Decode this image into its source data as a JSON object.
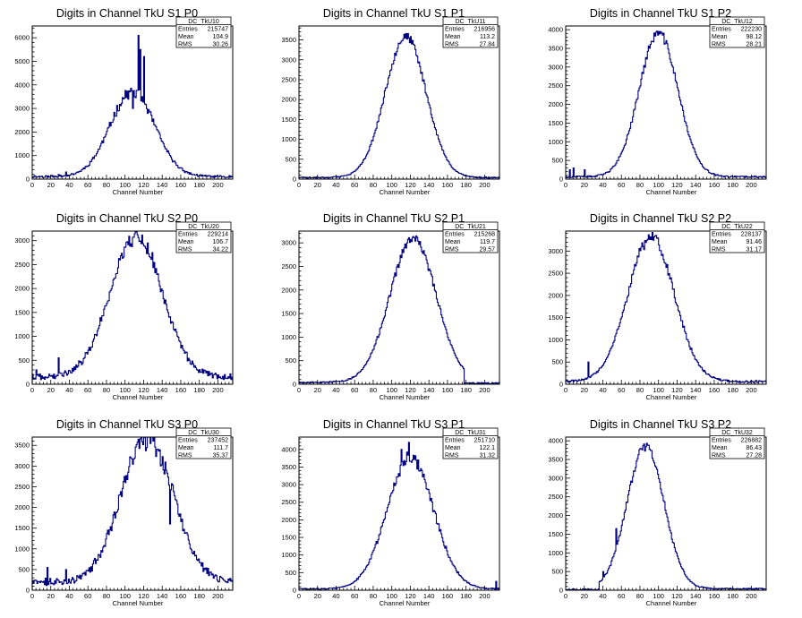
{
  "layout": {
    "rows": 3,
    "cols": 3
  },
  "chart_data": [
    {
      "type": "bar",
      "title": "Digits in Channel TkU S1 P0",
      "xlabel": "Channel Number",
      "ylabel": "",
      "xlim": [
        0,
        216
      ],
      "ylim": [
        0,
        6500
      ],
      "xticks": [
        0,
        20,
        40,
        60,
        80,
        100,
        120,
        140,
        160,
        180,
        200
      ],
      "yticks": [
        0,
        1000,
        2000,
        3000,
        4000,
        5000,
        6000
      ],
      "stats": {
        "name": "DC_TkU10",
        "rows": [
          {
            "label": "Entries",
            "value": "215747"
          },
          {
            "label": "Mean",
            "value": "104.9"
          },
          {
            "label": "RMS",
            "value": "30.26"
          }
        ]
      },
      "shape": {
        "mean": 108,
        "sigma": 24,
        "peak": 3600,
        "floor": 110,
        "noise": 0.06,
        "seed": 11,
        "spikes": [
          {
            "x": 108,
            "y": 3000
          },
          {
            "x": 110,
            "y": 3500
          },
          {
            "x": 114,
            "y": 6100
          },
          {
            "x": 116,
            "y": 5500
          },
          {
            "x": 118,
            "y": 3500
          },
          {
            "x": 120,
            "y": 5200
          },
          {
            "x": 36,
            "y": 300
          },
          {
            "x": 28,
            "y": 200
          }
        ]
      }
    },
    {
      "type": "bar",
      "title": "Digits in Channel TkU S1 P1",
      "xlabel": "Channel Number",
      "ylabel": "",
      "xlim": [
        0,
        216
      ],
      "ylim": [
        0,
        3850
      ],
      "xticks": [
        0,
        20,
        40,
        60,
        80,
        100,
        120,
        140,
        160,
        180,
        200
      ],
      "yticks": [
        0,
        500,
        1000,
        1500,
        2000,
        2500,
        3000,
        3500
      ],
      "stats": {
        "name": "DC_TkU11",
        "rows": [
          {
            "label": "Entries",
            "value": "216956"
          },
          {
            "label": "Mean",
            "value": "113.2"
          },
          {
            "label": "RMS",
            "value": "27.84"
          }
        ]
      },
      "shape": {
        "mean": 115,
        "sigma": 22,
        "peak": 3550,
        "floor": 40,
        "noise": 0.03,
        "seed": 23,
        "spikes": []
      }
    },
    {
      "type": "bar",
      "title": "Digits in Channel TkU S1 P2",
      "xlabel": "Channel Number",
      "ylabel": "",
      "xlim": [
        0,
        216
      ],
      "ylim": [
        0,
        4100
      ],
      "xticks": [
        0,
        20,
        40,
        60,
        80,
        100,
        120,
        140,
        160,
        180,
        200
      ],
      "yticks": [
        0,
        500,
        1000,
        1500,
        2000,
        2500,
        3000,
        3500,
        4000
      ],
      "stats": {
        "name": "DC_TkU12",
        "rows": [
          {
            "label": "Entries",
            "value": "222230"
          },
          {
            "label": "Mean",
            "value": "98.12"
          },
          {
            "label": "RMS",
            "value": "28.21"
          }
        ]
      },
      "shape": {
        "mean": 100,
        "sigma": 21,
        "peak": 3850,
        "floor": 60,
        "noise": 0.03,
        "seed": 37,
        "spikes": [
          {
            "x": 4,
            "y": 250
          },
          {
            "x": 8,
            "y": 300
          },
          {
            "x": 20,
            "y": 250
          }
        ]
      }
    },
    {
      "type": "bar",
      "title": "Digits in Channel TkU S2 P0",
      "xlabel": "Channel Number",
      "ylabel": "",
      "xlim": [
        0,
        216
      ],
      "ylim": [
        0,
        3200
      ],
      "xticks": [
        0,
        20,
        40,
        60,
        80,
        100,
        120,
        140,
        160,
        180,
        200
      ],
      "yticks": [
        0,
        500,
        1000,
        1500,
        2000,
        2500,
        3000
      ],
      "stats": {
        "name": "DC_TkU20",
        "rows": [
          {
            "label": "Entries",
            "value": "229214"
          },
          {
            "label": "Mean",
            "value": "106.7"
          },
          {
            "label": "RMS",
            "value": "34.22"
          }
        ]
      },
      "shape": {
        "mean": 112,
        "sigma": 28,
        "peak": 2950,
        "floor": 150,
        "noise": 0.05,
        "seed": 41,
        "spikes": [
          {
            "x": 28,
            "y": 550
          },
          {
            "x": 4,
            "y": 300
          }
        ]
      }
    },
    {
      "type": "bar",
      "title": "Digits in Channel TkU S2 P1",
      "xlabel": "Channel Number",
      "ylabel": "",
      "xlim": [
        0,
        216
      ],
      "ylim": [
        0,
        3250
      ],
      "xticks": [
        0,
        20,
        40,
        60,
        80,
        100,
        120,
        140,
        160,
        180,
        200
      ],
      "yticks": [
        0,
        500,
        1000,
        1500,
        2000,
        2500,
        3000
      ],
      "stats": {
        "name": "DC_TkU21",
        "rows": [
          {
            "label": "Entries",
            "value": "215268"
          },
          {
            "label": "Mean",
            "value": "119.7"
          },
          {
            "label": "RMS",
            "value": "29.57"
          }
        ]
      },
      "shape": {
        "mean": 123,
        "sigma": 25,
        "peak": 3050,
        "floor": 40,
        "noise": 0.03,
        "seed": 53,
        "cut": 178,
        "spikes": []
      }
    },
    {
      "type": "bar",
      "title": "Digits in Channel TkU S2 P2",
      "xlabel": "Channel Number",
      "ylabel": "",
      "xlim": [
        0,
        216
      ],
      "ylim": [
        0,
        3450
      ],
      "xticks": [
        0,
        20,
        40,
        60,
        80,
        100,
        120,
        140,
        160,
        180,
        200
      ],
      "yticks": [
        0,
        500,
        1000,
        1500,
        2000,
        2500,
        3000
      ],
      "stats": {
        "name": "DC_TkU22",
        "rows": [
          {
            "label": "Entries",
            "value": "228137"
          },
          {
            "label": "Mean",
            "value": "91.46"
          },
          {
            "label": "RMS",
            "value": "31.17"
          }
        ]
      },
      "shape": {
        "mean": 92,
        "sigma": 25,
        "peak": 3250,
        "floor": 60,
        "noise": 0.04,
        "seed": 61,
        "spikes": [
          {
            "x": 24,
            "y": 500
          }
        ]
      }
    },
    {
      "type": "bar",
      "title": "Digits in Channel TkU S3 P0",
      "xlabel": "Channel Number",
      "ylabel": "",
      "xlim": [
        0,
        216
      ],
      "ylim": [
        0,
        3700
      ],
      "xticks": [
        0,
        20,
        40,
        60,
        80,
        100,
        120,
        140,
        160,
        180,
        200
      ],
      "yticks": [
        0,
        500,
        1000,
        1500,
        2000,
        2500,
        3000,
        3500
      ],
      "stats": {
        "name": "DC_TkU30",
        "rows": [
          {
            "label": "Entries",
            "value": "237452"
          },
          {
            "label": "Mean",
            "value": "111.7"
          },
          {
            "label": "RMS",
            "value": "35.37"
          }
        ]
      },
      "shape": {
        "mean": 124,
        "sigma": 28,
        "peak": 3500,
        "floor": 200,
        "noise": 0.08,
        "seed": 71,
        "spikes": [
          {
            "x": 100,
            "y": 2600
          },
          {
            "x": 148,
            "y": 1600
          },
          {
            "x": 16,
            "y": 550
          },
          {
            "x": 36,
            "y": 500
          }
        ]
      }
    },
    {
      "type": "bar",
      "title": "Digits in Channel TkU S3 P1",
      "xlabel": "Channel Number",
      "ylabel": "",
      "xlim": [
        0,
        216
      ],
      "ylim": [
        0,
        4350
      ],
      "xticks": [
        0,
        20,
        40,
        60,
        80,
        100,
        120,
        140,
        160,
        180,
        200
      ],
      "yticks": [
        0,
        500,
        1000,
        1500,
        2000,
        2500,
        3000,
        3500,
        4000
      ],
      "stats": {
        "name": "DC_TkU31",
        "rows": [
          {
            "label": "Entries",
            "value": "251710"
          },
          {
            "label": "Mean",
            "value": "122.1"
          },
          {
            "label": "RMS",
            "value": "31.32"
          }
        ]
      },
      "shape": {
        "mean": 120,
        "sigma": 25,
        "peak": 3750,
        "floor": 40,
        "noise": 0.05,
        "seed": 83,
        "spikes": [
          {
            "x": 118,
            "y": 4200
          },
          {
            "x": 110,
            "y": 4000
          },
          {
            "x": 212,
            "y": 250
          }
        ]
      }
    },
    {
      "type": "bar",
      "title": "Digits in Channel TkU S3 P2",
      "xlabel": "Channel Number",
      "ylabel": "",
      "xlim": [
        0,
        216
      ],
      "ylim": [
        0,
        4100
      ],
      "xticks": [
        0,
        20,
        40,
        60,
        80,
        100,
        120,
        140,
        160,
        180,
        200
      ],
      "yticks": [
        0,
        500,
        1000,
        1500,
        2000,
        2500,
        3000,
        3500,
        4000
      ],
      "stats": {
        "name": "DC_TkU32",
        "rows": [
          {
            "label": "Entries",
            "value": "226882"
          },
          {
            "label": "Mean",
            "value": "86.43"
          },
          {
            "label": "RMS",
            "value": "27.28"
          }
        ]
      },
      "shape": {
        "mean": 86,
        "sigma": 20,
        "peak": 3800,
        "floor": 40,
        "noise": 0.03,
        "seed": 97,
        "cut_low": 36,
        "spikes": [
          {
            "x": 54,
            "y": 1650
          },
          {
            "x": 40,
            "y": 500
          }
        ]
      }
    }
  ]
}
